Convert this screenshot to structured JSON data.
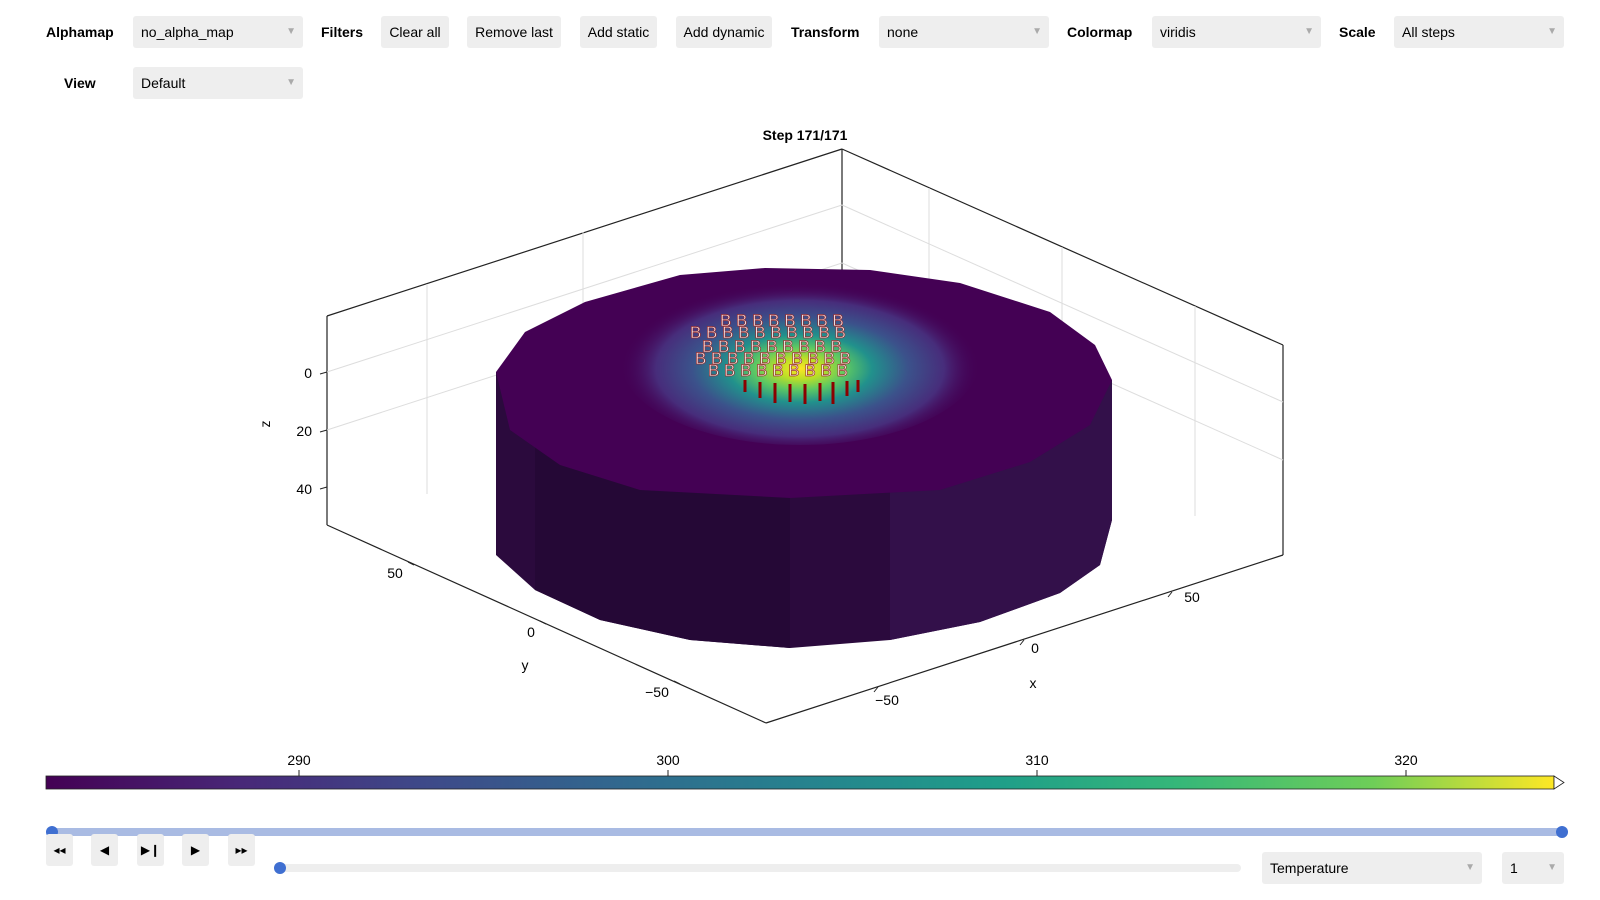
{
  "toolbar": {
    "alphamap_label": "Alphamap",
    "alphamap_value": "no_alpha_map",
    "filters_label": "Filters",
    "clear_all": "Clear all",
    "remove_last": "Remove last",
    "add_static": "Add static",
    "add_dynamic": "Add dynamic",
    "transform_label": "Transform",
    "transform_value": "none",
    "colormap_label": "Colormap",
    "colormap_value": "viridis",
    "scale_label": "Scale",
    "scale_value": "All steps",
    "view_label": "View",
    "view_value": "Default"
  },
  "plot": {
    "title": "Step 171/171",
    "x_label": "x",
    "y_label": "y",
    "z_label": "z",
    "x_ticks": [
      "−50",
      "0",
      "50"
    ],
    "y_ticks": [
      "−50",
      "0",
      "50"
    ],
    "z_ticks": [
      "0",
      "20",
      "40"
    ],
    "cylinder_color_side": "#2b0a3d",
    "cylinder_color_top": "#440154"
  },
  "colorbar": {
    "ticks": [
      "290",
      "300",
      "310",
      "320"
    ],
    "colors": [
      "#440154",
      "#3b528b",
      "#21918c",
      "#5ec962",
      "#fde725"
    ]
  },
  "time_slider": {
    "value_fraction": 1.0
  },
  "playback": {
    "rewind_icon": "fast-backward-icon",
    "step_back_icon": "step-back-icon",
    "play_pause_icon": "play-pause-icon",
    "play_icon": "play-icon",
    "forward_icon": "fast-forward-icon",
    "progress_fraction": 0.0,
    "variable_value": "Temperature",
    "component_value": "1"
  }
}
